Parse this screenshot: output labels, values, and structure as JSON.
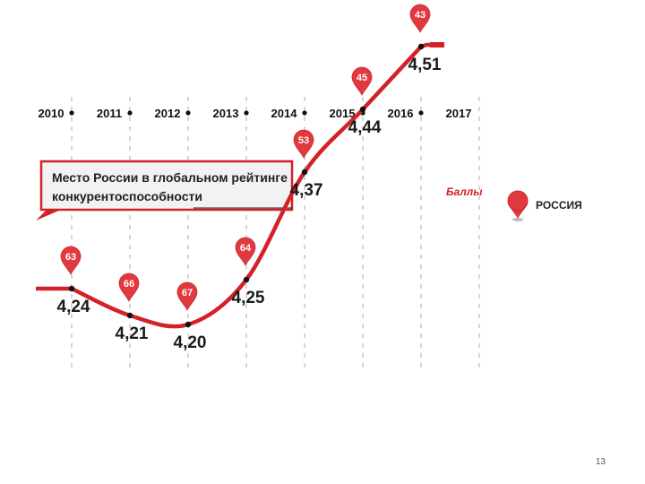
{
  "chart_data": {
    "type": "line",
    "title_lines": [
      "Место России в глобальном рейтинге",
      "конкурентоспособности"
    ],
    "units_label": "Баллы",
    "categories": [
      "2010",
      "2011",
      "2012",
      "2013",
      "2014",
      "2015",
      "2016",
      "2017"
    ],
    "point_years": [
      "2010",
      "2011",
      "2012",
      "2013",
      "2014",
      "2015",
      "2016"
    ],
    "scores": [
      4.24,
      4.21,
      4.2,
      4.25,
      4.37,
      4.44,
      4.51
    ],
    "score_labels": [
      "4,24",
      "4,21",
      "4,20",
      "4,25",
      "4,37",
      "4,44",
      "4,51"
    ],
    "ranks": [
      63,
      66,
      67,
      64,
      53,
      45,
      43
    ],
    "legend": "РОССИЯ",
    "grid": "vertical-dashed"
  },
  "colors": {
    "line": "#d32128",
    "marker": "#e0393e",
    "title_box_border": "#d32128",
    "title_box_fill": "#f2f2f2"
  },
  "page_number": "13"
}
